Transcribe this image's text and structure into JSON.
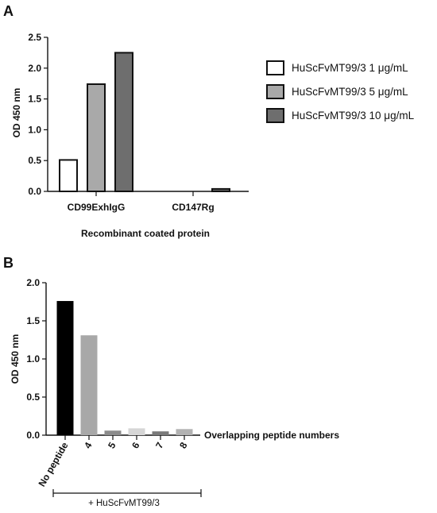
{
  "chart_data": [
    {
      "panel": "A",
      "type": "bar",
      "ylabel": "OD 450 nm",
      "xlabel": "Recombinant coated protein",
      "ylim": [
        0,
        2.5
      ],
      "yticks": [
        "0.0",
        "0.5",
        "1.0",
        "1.5",
        "2.0",
        "2.5"
      ],
      "categories": [
        "CD99ExhIgG",
        "CD147Rg"
      ],
      "series": [
        {
          "name": "HuScFvMT99/3 1 μg/mL",
          "values": [
            0.51,
            0.0
          ],
          "color": "#ffffff"
        },
        {
          "name": "HuScFvMT99/3 5 μg/mL",
          "values": [
            1.74,
            0.0
          ],
          "color": "#a9a9a9"
        },
        {
          "name": "HuScFvMT99/3 10 μg/mL",
          "values": [
            2.25,
            0.04
          ],
          "color": "#6e6e6e"
        }
      ],
      "legend": "right",
      "grid": false
    },
    {
      "panel": "B",
      "type": "bar",
      "ylabel": "OD 450 nm",
      "xlabel": "Overlapping peptide numbers",
      "ylim": [
        0,
        2.0
      ],
      "yticks": [
        "0.0",
        "0.5",
        "1.0",
        "1.5",
        "2.0"
      ],
      "categories": [
        "No peptide",
        "4",
        "5",
        "6",
        "7",
        "8"
      ],
      "values": [
        1.76,
        1.31,
        0.06,
        0.09,
        0.05,
        0.08
      ],
      "colors": [
        "#000000",
        "#a8a8a8",
        "#8c8c8c",
        "#d6d6d6",
        "#7a7a7a",
        "#b2b2b2"
      ],
      "bracket_label": "+ HuScFvMT99/3",
      "grid": false
    }
  ]
}
